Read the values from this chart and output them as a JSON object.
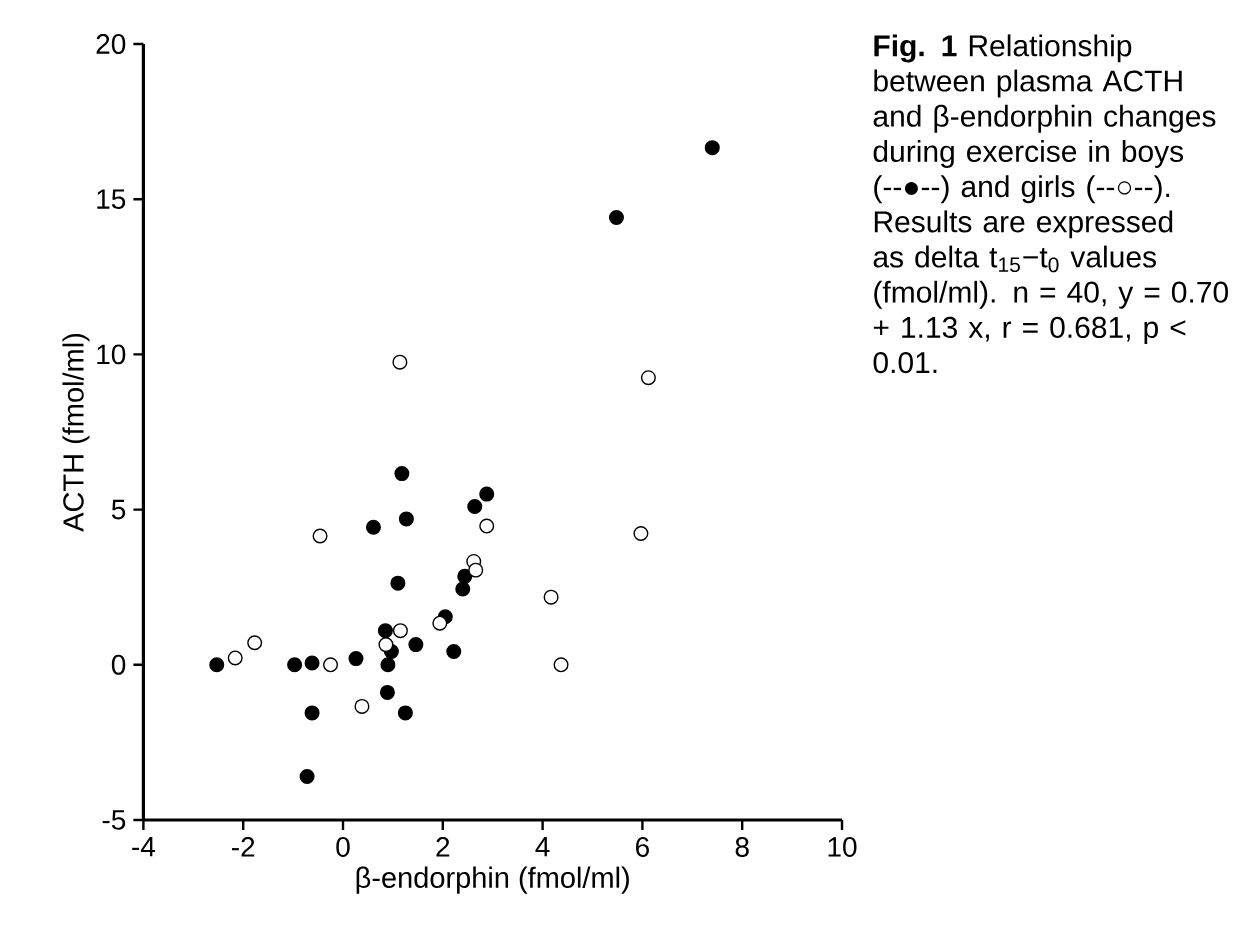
{
  "chart_data": {
    "type": "scatter",
    "xlabel": "β-endorphin (fmol/ml)",
    "ylabel": "ACTH (fmol/ml)",
    "annotations": [
      "**Fig. 1** Relationship between plasma ACTH and β-endorphin changes during exercise in boys (--●--) and girls (--○--). Results are expressed as delta t$_{15}$−t$_{0}$ values (fmol/ml). n = 40, y = 0.70 + 1.13 x, r = 0.681, p < 0.01."
    ],
    "xlim": [
      -4,
      10
    ],
    "ylim": [
      -5,
      20
    ],
    "xticks": [
      -4,
      -2,
      0,
      2,
      4,
      6,
      8,
      10
    ],
    "yticks": [
      -5,
      0,
      5,
      10,
      15,
      20
    ],
    "grid": false,
    "marker": "circle",
    "series": [
      {
        "color": "#000000",
        "x": [
          -2.53,
          -0.97,
          -0.62,
          -0.62,
          -0.72,
          0.26,
          0.61,
          0.85,
          0.9,
          0.97,
          0.89,
          1.1,
          1.27,
          1.25,
          1.46,
          2.05,
          2.22,
          2.4,
          2.44,
          2.64,
          2.88,
          1.18,
          5.48,
          7.4
        ],
        "values": [
          0,
          0,
          0.06,
          -1.55,
          -3.6,
          0.2,
          4.43,
          1.1,
          0,
          0.43,
          -0.89,
          2.63,
          4.7,
          -1.55,
          0.65,
          1.55,
          0.43,
          2.44,
          2.85,
          5.1,
          5.5,
          6.16,
          14.41,
          16.66
        ]
      },
      {
        "color": "#ffffff",
        "x": [
          -1.77,
          -2.16,
          -0.46,
          -0.25,
          0.38,
          0.86,
          1.15,
          1.94,
          2.62,
          2.66,
          2.88,
          4.17,
          4.37,
          5.97,
          1.14,
          6.12
        ],
        "values": [
          0.71,
          0.22,
          4.15,
          0,
          -1.34,
          0.65,
          1.1,
          1.34,
          3.33,
          3.05,
          4.47,
          2.18,
          0,
          4.23,
          9.75,
          9.25
        ]
      }
    ]
  }
}
